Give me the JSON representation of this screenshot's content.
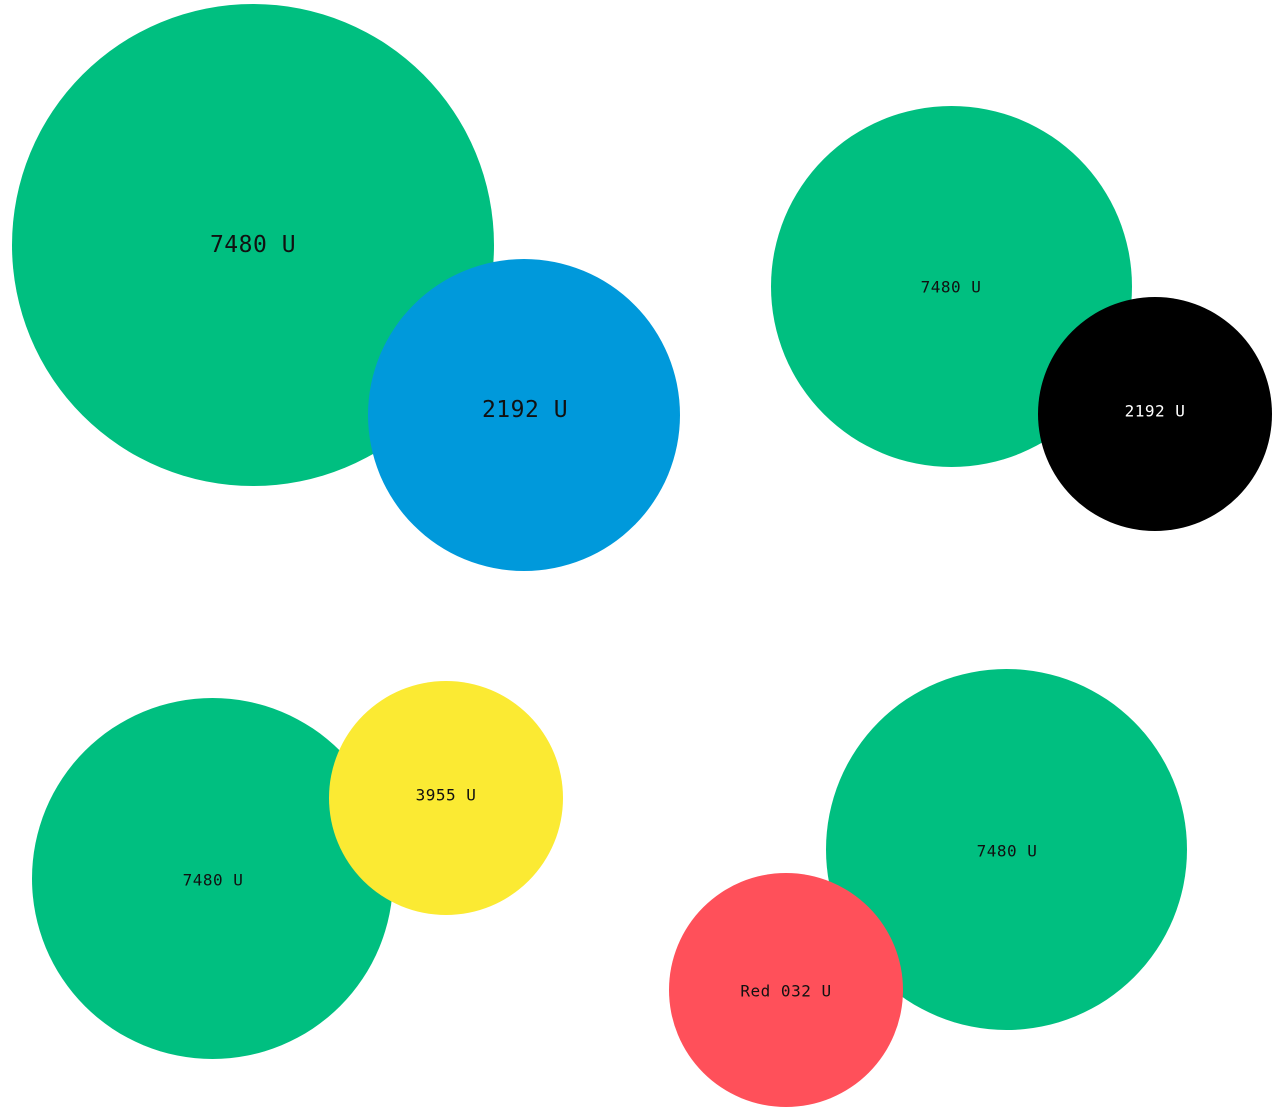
{
  "colors": {
    "green": "#00BF80",
    "blue": "#0099DB",
    "black": "#000000",
    "yellow": "#FBEA33",
    "red": "#FF505A",
    "label_dark": "#111111",
    "label_light": "#ffffff"
  },
  "groups": [
    {
      "primary": {
        "label": "7480 U",
        "color": "#00BF80"
      },
      "secondary": {
        "label": "2192 U",
        "color": "#0099DB"
      }
    },
    {
      "primary": {
        "label": "7480 U",
        "color": "#00BF80"
      },
      "secondary": {
        "label": "2192 U",
        "color": "#000000"
      }
    },
    {
      "primary": {
        "label": "7480 U",
        "color": "#00BF80"
      },
      "secondary": {
        "label": "3955 U",
        "color": "#FBEA33"
      }
    },
    {
      "primary": {
        "label": "7480 U",
        "color": "#00BF80"
      },
      "secondary": {
        "label": "Red 032 U",
        "color": "#FF505A"
      }
    }
  ]
}
